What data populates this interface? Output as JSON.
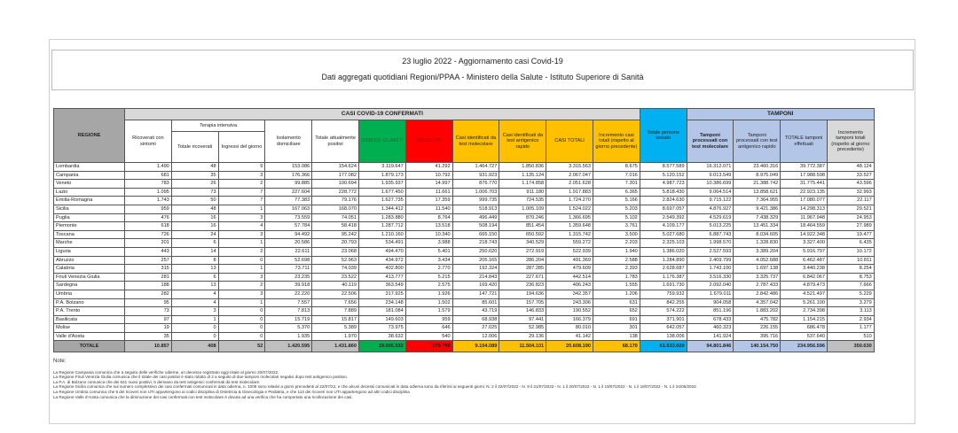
{
  "title": "23 luglio 2022 - Aggiornamento casi Covid-19",
  "subtitle": "Dati aggregati quotidiani Regioni/PPAA - Ministero della Salute - Istituto Superiore di Sanità",
  "colors": {
    "dimessi": "#00b050",
    "deceduti": "#ff0000",
    "casi": "#ffc000",
    "persone": "#00b0f0",
    "tamponi": "#b4c6e7"
  },
  "headers": {
    "regione": "REGIONE",
    "casi_group": "CASI COVID-19 CONFERMATI",
    "tamponi_group": "TAMPONI",
    "terapia_group": "Terapia intensiva",
    "columns": [
      "Ricoverati con sintomi",
      "Totale ricoverati",
      "Ingressi del giorno",
      "Isolamento domiciliare",
      "Totale attualmente positivi",
      "DIMESSI GUARITI",
      "DECEDUTI",
      "Casi identificati da test molecolare",
      "Casi identificati da test antigenico rapido",
      "CASI TOTALI",
      "Incremento casi totali (rispetto al giorno precedente)",
      "Totale persone testate",
      "Tamponi processati con test molecolare",
      "Tamponi processati con test antigenico rapido",
      "TOTALE tamponi effettuati",
      "Incremento tamponi totali (rispetto al giorno precedente)"
    ]
  },
  "rows": [
    [
      "Lombardia",
      "1.490",
      "48",
      "9",
      "153.086",
      "154.624",
      "3.119.647",
      "41.292",
      "1.464.727",
      "1.850.836",
      "3.315.563",
      "8.675",
      "8.577.589",
      "16.312.071",
      "23.460.316",
      "39.772.387",
      "48.124"
    ],
    [
      "Campania",
      "681",
      "35",
      "3",
      "176.366",
      "177.082",
      "1.879.173",
      "10.792",
      "931.923",
      "1.135.124",
      "2.067.047",
      "7.016",
      "5.120.152",
      "9.013.549",
      "8.975.049",
      "17.988.598",
      "33.527"
    ],
    [
      "Veneto",
      "783",
      "26",
      "2",
      "99.885",
      "100.694",
      "1.935.937",
      "14.997",
      "876.770",
      "1.174.858",
      "2.051.628",
      "7.301",
      "4.987.723",
      "10.386.699",
      "21.388.742",
      "31.775.441",
      "43.596"
    ],
    [
      "Lazio",
      "1.095",
      "73",
      "7",
      "227.604",
      "228.772",
      "1.677.450",
      "11.661",
      "1.006.703",
      "911.180",
      "1.917.883",
      "6.365",
      "5.818.430",
      "9.064.514",
      "13.858.621",
      "22.923.135",
      "32.993"
    ],
    [
      "Emilia-Romagna",
      "1.743",
      "50",
      "7",
      "77.383",
      "79.176",
      "1.627.735",
      "17.359",
      "999.735",
      "724.535",
      "1.724.270",
      "5.166",
      "2.824.630",
      "9.715.122",
      "7.364.955",
      "17.080.077",
      "22.117"
    ],
    [
      "Sicilia",
      "959",
      "48",
      "1",
      "167.063",
      "168.070",
      "1.344.412",
      "11.540",
      "518.913",
      "1.005.109",
      "1.524.022",
      "5.203",
      "8.697.057",
      "4.876.927",
      "9.421.386",
      "14.298.313",
      "29.521"
    ],
    [
      "Puglia",
      "476",
      "16",
      "3",
      "73.559",
      "74.051",
      "1.283.880",
      "8.764",
      "496.449",
      "870.246",
      "1.366.695",
      "5.102",
      "2.549.392",
      "4.529.619",
      "7.438.329",
      "11.967.948",
      "24.953"
    ],
    [
      "Piemonte",
      "618",
      "16",
      "4",
      "57.784",
      "58.418",
      "1.287.712",
      "13.518",
      "508.194",
      "851.454",
      "1.359.648",
      "3.761",
      "4.109.177",
      "5.013.225",
      "13.451.334",
      "18.464.559",
      "27.989"
    ],
    [
      "Toscana",
      "726",
      "24",
      "3",
      "94.492",
      "95.242",
      "1.210.160",
      "10.340",
      "665.150",
      "650.592",
      "1.315.742",
      "3.500",
      "5.027.680",
      "6.887.743",
      "8.034.605",
      "14.922.348",
      "19.477"
    ],
    [
      "Marche",
      "201",
      "6",
      "1",
      "20.586",
      "20.793",
      "534.491",
      "3.988",
      "218.743",
      "340.529",
      "559.272",
      "2.203",
      "2.325.103",
      "1.998.570",
      "1.328.830",
      "3.327.400",
      "6.435"
    ],
    [
      "Liguria",
      "443",
      "14",
      "2",
      "22.611",
      "23.068",
      "494.470",
      "5.401",
      "250.020",
      "272.919",
      "522.939",
      "1.940",
      "1.386.020",
      "2.527.593",
      "3.389.204",
      "5.916.797",
      "10.172"
    ],
    [
      "Abruzzo",
      "257",
      "8",
      "0",
      "52.698",
      "52.963",
      "434.972",
      "3.434",
      "205.165",
      "286.204",
      "491.369",
      "2.588",
      "1.284.890",
      "2.409.799",
      "4.052.688",
      "6.462.487",
      "10.811"
    ],
    [
      "Calabria",
      "315",
      "13",
      "1",
      "73.711",
      "74.039",
      "402.800",
      "2.770",
      "192.324",
      "287.285",
      "479.609",
      "2.393",
      "2.628.687",
      "1.743.100",
      "1.697.138",
      "3.440.238",
      "8.254"
    ],
    [
      "Friuli Venezia Giulia",
      "281",
      "6",
      "3",
      "23.235",
      "23.522",
      "413.777",
      "5.215",
      "214.843",
      "227.671",
      "442.514",
      "1.783",
      "1.176.387",
      "3.516.330",
      "3.325.737",
      "6.842.067",
      "8.753"
    ],
    [
      "Sardegna",
      "188",
      "13",
      "2",
      "39.918",
      "40.119",
      "363.549",
      "2.575",
      "169.420",
      "236.823",
      "406.243",
      "1.555",
      "1.691.730",
      "2.092.040",
      "2.787.433",
      "4.879.473",
      "7.666"
    ],
    [
      "Umbria",
      "282",
      "4",
      "3",
      "22.220",
      "22.506",
      "317.925",
      "1.926",
      "147.721",
      "194.636",
      "342.357",
      "1.206",
      "759.932",
      "1.679.011",
      "2.842.486",
      "4.521.497",
      "5.229"
    ],
    [
      "P.A. Bolzano",
      "95",
      "4",
      "1",
      "7.557",
      "7.656",
      "234.148",
      "1.502",
      "85.601",
      "157.705",
      "243.306",
      "631",
      "842.255",
      "904.058",
      "4.357.042",
      "5.261.100",
      "3.279"
    ],
    [
      "P.A. Trento",
      "73",
      "3",
      "0",
      "7.813",
      "7.889",
      "181.084",
      "1.579",
      "43.719",
      "146.833",
      "190.552",
      "652",
      "574.222",
      "851.196",
      "1.883.202",
      "2.734.398",
      "3.113"
    ],
    [
      "Basilicata",
      "97",
      "1",
      "0",
      "15.719",
      "15.817",
      "149.603",
      "959",
      "68.938",
      "97.441",
      "166.379",
      "691",
      "371.901",
      "678.433",
      "475.782",
      "1.154.215",
      "2.934"
    ],
    [
      "Molise",
      "19",
      "0",
      "0",
      "5.370",
      "5.389",
      "73.975",
      "646",
      "27.025",
      "52.985",
      "80.010",
      "301",
      "642.057",
      "460.323",
      "226.155",
      "686.478",
      "1.177"
    ],
    [
      "Valle d'Aosta",
      "35",
      "0",
      "0",
      "1.935",
      "1.970",
      "38.632",
      "540",
      "12.006",
      "29.136",
      "41.142",
      "138",
      "138.006",
      "141.924",
      "395.716",
      "537.640",
      "510"
    ]
  ],
  "total": [
    "TOTALE",
    "10.857",
    "408",
    "52",
    "1.420.595",
    "1.431.860",
    "19.005.532",
    "170.798",
    "9.104.089",
    "11.504.101",
    "20.608.190",
    "68.170",
    "61.533.020",
    "94.801.846",
    "140.154.750",
    "234.956.596",
    "350.630"
  ],
  "notes": {
    "label": "Note:",
    "lines": [
      "La Regione Campania comunica che a seguito delle verifiche odierne, un decesso registrato oggi risale al giorno 20/07/2022.",
      "La Regione Friuli Venezia Giulia comunica che il totale dei casi positivi è stato ridotto di 2 a seguito di due tamponi molecolari negativi dopo test antigenico positivo.",
      "La P.A. di Bolzano comunica che dei 631 nuovi positivi, 5 derivano da test antigenici confermati da test molecolare.",
      "La Regione Sicilia comunica che sul numero complessivo dei casi confermati comunicati in data odierna, n. 1006 sono relativi a giorni precedenti al 22/07/22, e che alcuni decessi comunicati in data odierna sono da riferirsi ai seguenti giorni: N. 2 il 22/07/2022 - N. 9 il 21/07/2022 - N. 1 il 20/07/2022 - N. 1 il 19/07/2022 - N. 1 il 18/07/2022 - N. 1 il 24/05/2022.",
      "La Regione Umbria comunica che 5 dei ricoveri non UTI appartengono ai codici disciplina di Ostetricia & Ginecologia e Pediatria, e che 113 dei ricoveri non UTI appartengono ad altri codici disciplina",
      "La Regione Valle d'Aosta comunica che la diminuzione dei casi confermati con test molecolare è dovuta ad una verifica che ha comportato una ricollocazione dei casi."
    ]
  }
}
